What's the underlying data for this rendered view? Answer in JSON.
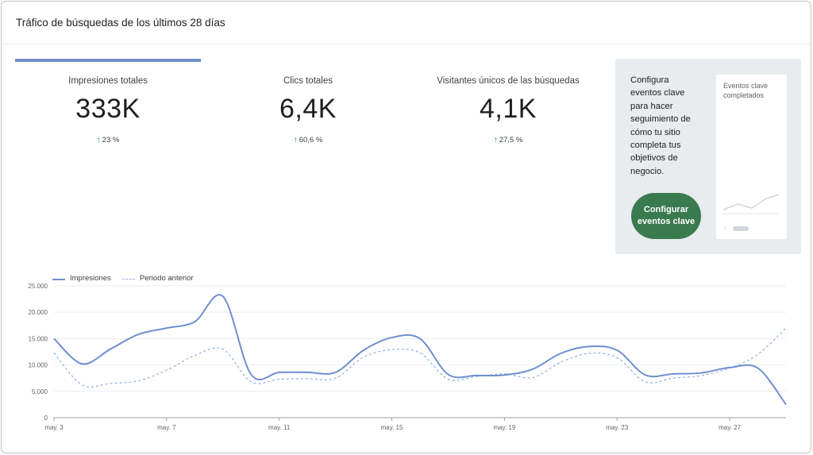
{
  "header": {
    "title": "Tráfico de búsquedas de los últimos 28 días"
  },
  "metrics": [
    {
      "label": "Impresiones totales",
      "value": "333K",
      "change": "23 %",
      "selected": true
    },
    {
      "label": "Clics totales",
      "value": "6,4K",
      "change": "60,6 %",
      "selected": false
    },
    {
      "label": "Visitantes únicos de las búsquedas",
      "value": "4,1K",
      "change": "27,5 %",
      "selected": false
    }
  ],
  "promo": {
    "text": "Configura eventos clave para hacer seguimiento de cómo tu sitio completa tus objetivos de negocio.",
    "button_label": "Configurar eventos clave",
    "mini_title": "Eventos clave completados",
    "button_color": "#3a7a4f"
  },
  "legend": {
    "current": "Impresiones",
    "previous": "Periodo anterior"
  },
  "colors": {
    "accent": "#6f8fcf",
    "previous": "#8fb0e0",
    "positive": "#188038"
  },
  "chart_data": {
    "type": "line",
    "ylim": [
      0,
      25000
    ],
    "yticks": [
      "0",
      "5.000",
      "10.000",
      "15.000",
      "20.000",
      "25.000"
    ],
    "ytick_values": [
      0,
      5000,
      10000,
      15000,
      20000,
      25000
    ],
    "xtick_labels": [
      "may. 3",
      "may. 7",
      "may. 11",
      "may. 15",
      "may. 19",
      "may. 23",
      "may. 27"
    ],
    "xtick_index": [
      1,
      5,
      9,
      13,
      17,
      21,
      25
    ],
    "x": [
      1,
      2,
      3,
      4,
      5,
      6,
      7,
      8,
      9,
      10,
      11,
      12,
      13,
      14,
      15,
      16,
      17,
      18,
      19,
      20,
      21,
      22,
      23,
      24,
      25,
      26,
      27
    ],
    "series": [
      {
        "name": "Impresiones",
        "style": "solid",
        "values": [
          15000,
          10200,
          13000,
          15800,
          17000,
          18200,
          23000,
          8200,
          8600,
          8600,
          8600,
          12800,
          15200,
          15000,
          8200,
          8000,
          8100,
          9200,
          12200,
          13500,
          12800,
          8100,
          8300,
          8500,
          9500,
          9400,
          2500
        ]
      },
      {
        "name": "Periodo anterior",
        "style": "dashed",
        "values": [
          12300,
          6200,
          6500,
          7000,
          9000,
          11800,
          13000,
          6800,
          7300,
          7400,
          7500,
          11500,
          12900,
          12300,
          7300,
          7800,
          8300,
          7600,
          10500,
          12200,
          11400,
          6800,
          7500,
          8000,
          9400,
          12000,
          17000
        ]
      }
    ]
  }
}
